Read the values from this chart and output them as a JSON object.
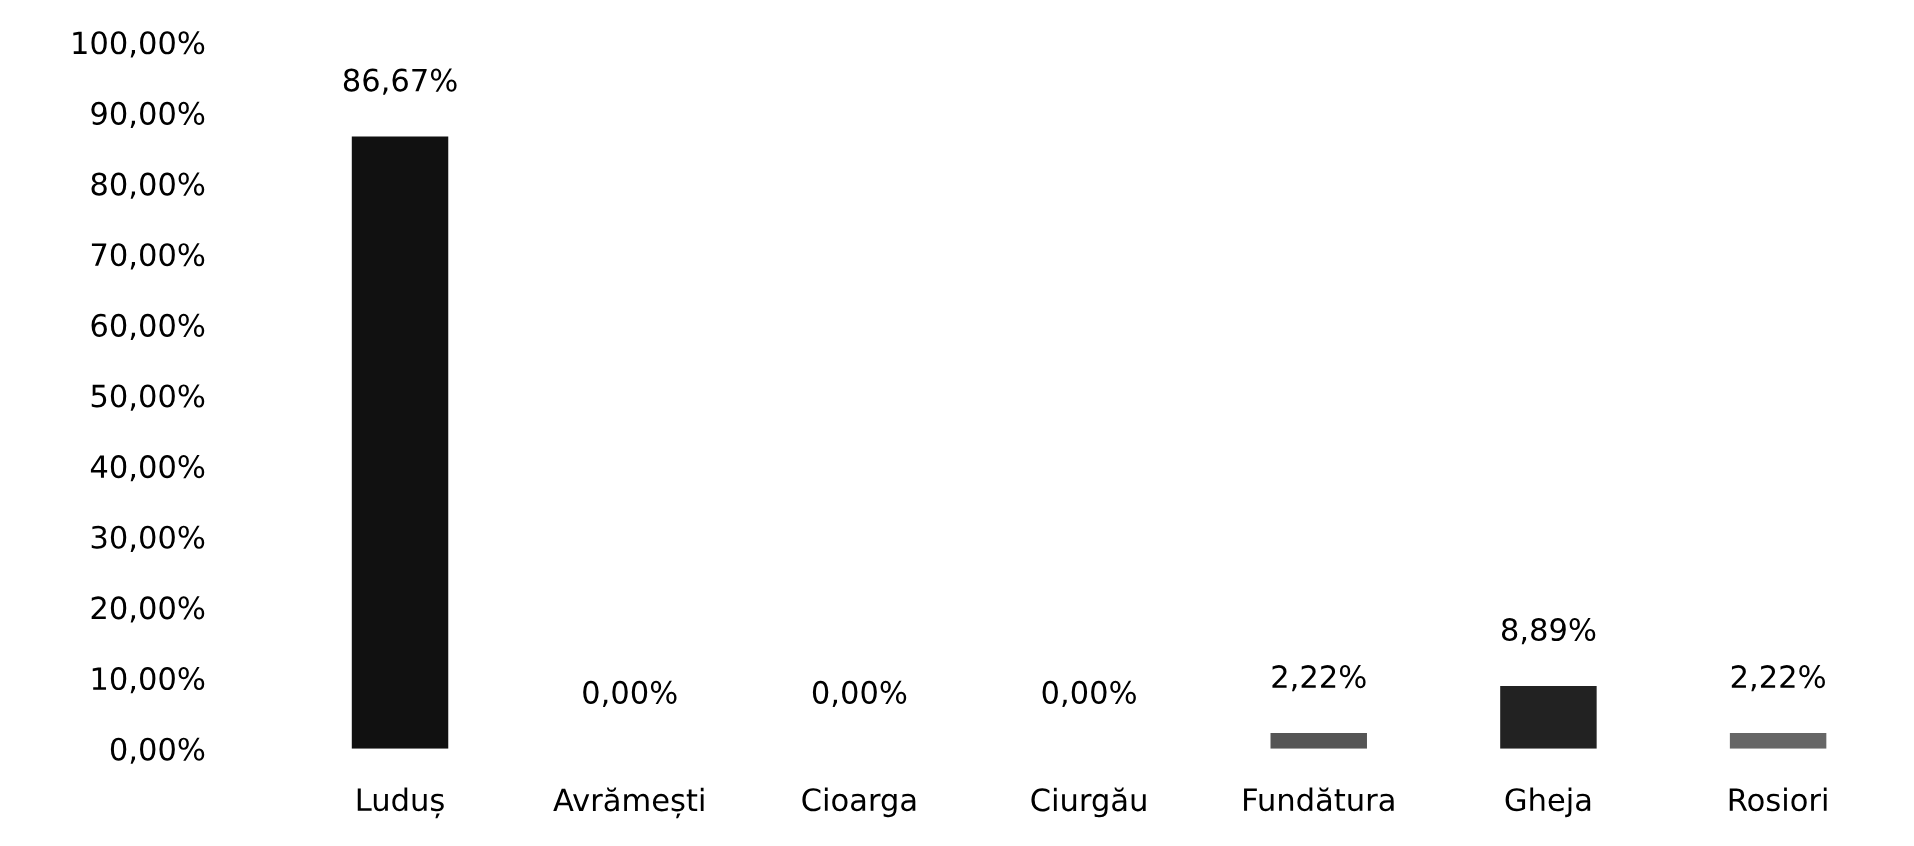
{
  "chart_data": {
    "type": "bar",
    "categories": [
      "Luduș",
      "Avrămești",
      "Cioarga",
      "Ciurgău",
      "Fundătura",
      "Gheja",
      "Rosiori"
    ],
    "values": [
      86.67,
      0,
      0,
      0,
      2.22,
      8.89,
      2.22
    ],
    "colors": [
      "#111111",
      "#111111",
      "#111111",
      "#111111",
      "#555555",
      "#222222",
      "#666666"
    ],
    "value_labels": [
      "86,67%",
      "0,00%",
      "0,00%",
      "0,00%",
      "2,22%",
      "8,89%",
      "2,22%"
    ],
    "ylim": [
      0,
      100
    ],
    "yticks": [
      {
        "value": 0,
        "label": "0,00%"
      },
      {
        "value": 10,
        "label": "10,00%"
      },
      {
        "value": 20,
        "label": "20,00%"
      },
      {
        "value": 30,
        "label": "30,00%"
      },
      {
        "value": 40,
        "label": "40,00%"
      },
      {
        "value": 50,
        "label": "50,00%"
      },
      {
        "value": 60,
        "label": "60,00%"
      },
      {
        "value": 70,
        "label": "70,00%"
      },
      {
        "value": 80,
        "label": "80,00%"
      },
      {
        "value": 90,
        "label": "90,00%"
      },
      {
        "value": 100,
        "label": "100,00%"
      }
    ],
    "grid": false
  }
}
